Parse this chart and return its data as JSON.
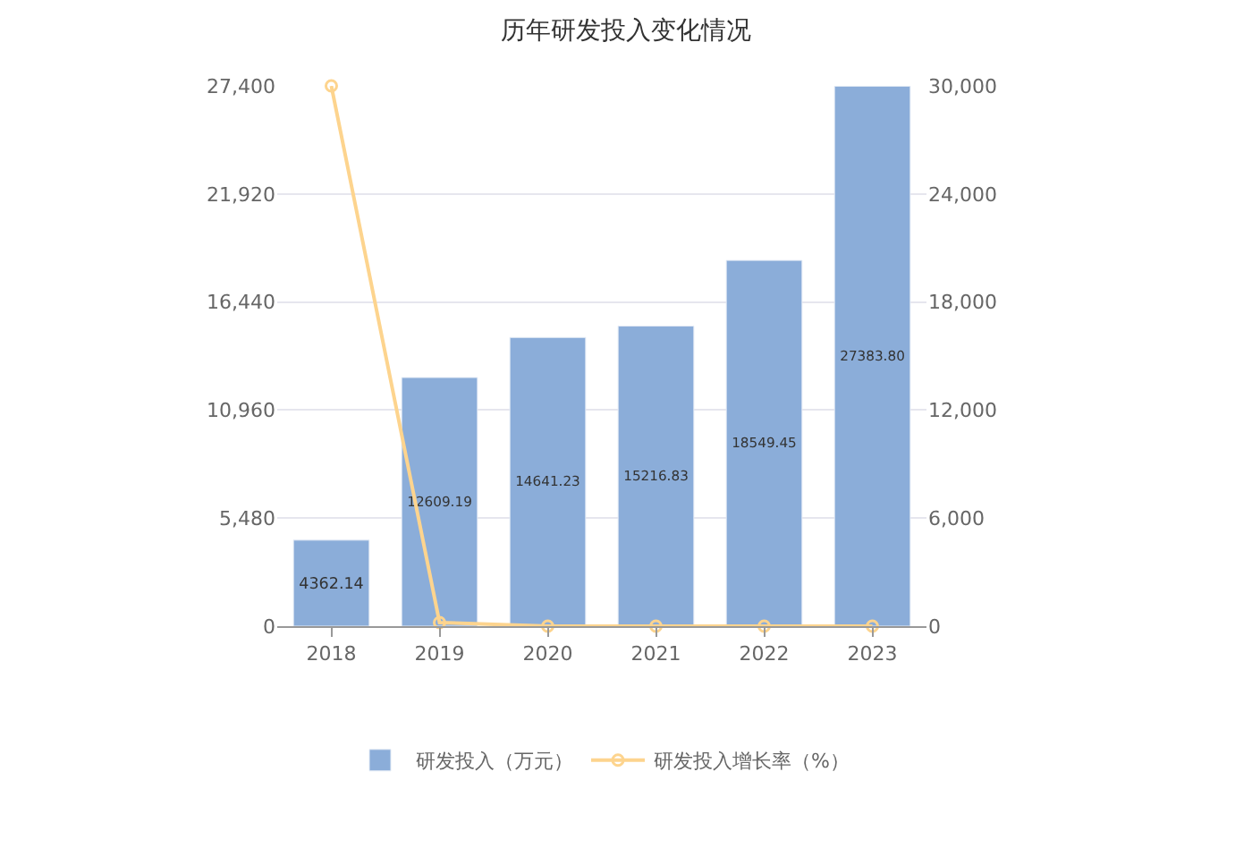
{
  "chart_data": {
    "type": "bar",
    "title": "历年研发投入变化情况",
    "categories": [
      "2018",
      "2019",
      "2020",
      "2021",
      "2022",
      "2023"
    ],
    "series": [
      {
        "name": "研发投入（万元）",
        "color": "#8badd9",
        "values": [
          4362.14,
          12609.19,
          14641.23,
          15216.83,
          18549.45,
          27383.8
        ],
        "value_labels": [
          "4362.14",
          "12609.19",
          "14641.23",
          "15216.83",
          "18549.45",
          "27383.80"
        ]
      },
      {
        "name": "研发投入增长率（%）",
        "type": "line",
        "axis": "y2",
        "color": "#fdd48e",
        "marker": "circle",
        "values": [
          30000,
          200,
          0,
          0,
          0,
          0
        ]
      }
    ],
    "ylim": [
      0,
      27400
    ],
    "yticks": [
      0,
      {
        "value": 5480,
        "label": "5,480"
      },
      {
        "value": 10960,
        "label": "10,960"
      },
      {
        "value": 16440,
        "label": "16,440"
      },
      {
        "value": 21920,
        "label": "21,920"
      },
      {
        "value": 27400,
        "label": "27,400"
      }
    ],
    "y2lim": [
      0,
      30000
    ],
    "y2ticks": [
      0,
      {
        "value": 6000,
        "label": "6,000"
      },
      {
        "value": 12000,
        "label": "12,000"
      },
      {
        "value": 18000,
        "label": "18,000"
      },
      {
        "value": 24000,
        "label": "24,000"
      },
      {
        "value": 30000,
        "label": "30,000"
      }
    ],
    "grid": "y",
    "legend": "bottom"
  }
}
